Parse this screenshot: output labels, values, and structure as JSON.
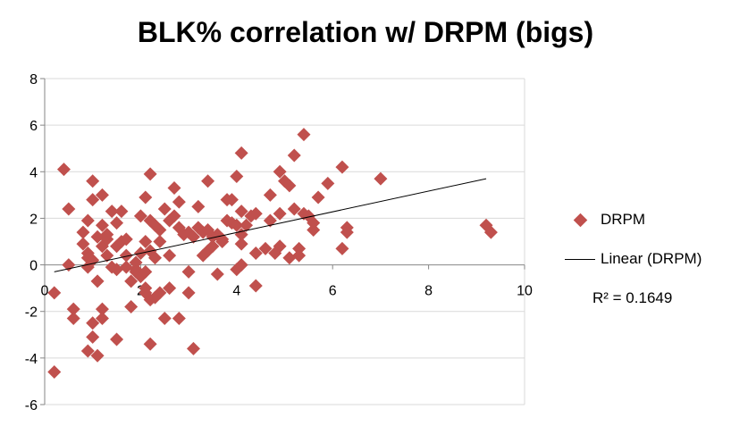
{
  "chart_data": {
    "type": "scatter",
    "title": "BLK% correlation w/ DRPM (bigs)",
    "xlabel": "",
    "ylabel": "",
    "xlim": [
      0,
      10
    ],
    "ylim": [
      -6,
      8
    ],
    "x_ticks": [
      "0",
      "2",
      "4",
      "6",
      "8",
      "10"
    ],
    "y_ticks": [
      "8",
      "6",
      "4",
      "2",
      "0",
      "-2",
      "-4",
      "-6"
    ],
    "grid": "horizontal",
    "legend_position": "right",
    "colors": {
      "marker": "#c0504d",
      "trendline": "#000000",
      "grid": "#d9d9d9",
      "axis": "#868686"
    },
    "series": [
      {
        "name": "DRPM",
        "points": [
          [
            0.2,
            -4.6
          ],
          [
            0.2,
            -1.2
          ],
          [
            0.4,
            4.1
          ],
          [
            0.5,
            2.4
          ],
          [
            0.5,
            0.0
          ],
          [
            0.6,
            -1.9
          ],
          [
            0.6,
            -2.3
          ],
          [
            0.8,
            1.4
          ],
          [
            0.8,
            0.9
          ],
          [
            0.9,
            0.5
          ],
          [
            0.9,
            1.9
          ],
          [
            0.9,
            -0.1
          ],
          [
            0.9,
            0.3
          ],
          [
            0.9,
            -3.7
          ],
          [
            1.0,
            0.2
          ],
          [
            1.0,
            -2.5
          ],
          [
            1.0,
            -3.1
          ],
          [
            1.0,
            2.8
          ],
          [
            1.0,
            3.6
          ],
          [
            1.1,
            -0.7
          ],
          [
            1.1,
            -3.9
          ],
          [
            1.1,
            1.2
          ],
          [
            1.2,
            -1.9
          ],
          [
            1.2,
            -2.3
          ],
          [
            1.2,
            0.8
          ],
          [
            1.2,
            1.7
          ],
          [
            1.2,
            3.0
          ],
          [
            1.3,
            0.4
          ],
          [
            1.3,
            1.1
          ],
          [
            1.3,
            1.3
          ],
          [
            1.4,
            -0.1
          ],
          [
            1.4,
            2.3
          ],
          [
            1.5,
            1.8
          ],
          [
            1.5,
            0.8
          ],
          [
            1.5,
            -0.2
          ],
          [
            1.5,
            -3.2
          ],
          [
            1.6,
            1.0
          ],
          [
            1.6,
            2.3
          ],
          [
            1.7,
            1.1
          ],
          [
            1.7,
            0.4
          ],
          [
            1.7,
            -0.1
          ],
          [
            1.8,
            -0.7
          ],
          [
            1.8,
            -1.8
          ],
          [
            1.9,
            -0.2
          ],
          [
            1.9,
            0.1
          ],
          [
            1.9,
            -0.3
          ],
          [
            2.0,
            0.5
          ],
          [
            2.0,
            2.1
          ],
          [
            2.0,
            -0.5
          ],
          [
            2.1,
            2.9
          ],
          [
            2.1,
            -1.0
          ],
          [
            2.1,
            -1.2
          ],
          [
            2.1,
            -0.3
          ],
          [
            2.1,
            1.0
          ],
          [
            2.2,
            0.6
          ],
          [
            2.2,
            1.9
          ],
          [
            2.2,
            3.9
          ],
          [
            2.2,
            -1.5
          ],
          [
            2.2,
            -3.4
          ],
          [
            2.3,
            1.7
          ],
          [
            2.3,
            -1.4
          ],
          [
            2.3,
            0.3
          ],
          [
            2.4,
            1.0
          ],
          [
            2.4,
            1.5
          ],
          [
            2.4,
            -1.2
          ],
          [
            2.5,
            2.4
          ],
          [
            2.5,
            -2.3
          ],
          [
            2.6,
            1.9
          ],
          [
            2.6,
            0.4
          ],
          [
            2.6,
            -1.0
          ],
          [
            2.7,
            2.1
          ],
          [
            2.7,
            3.3
          ],
          [
            2.8,
            -2.3
          ],
          [
            2.8,
            1.6
          ],
          [
            2.8,
            2.7
          ],
          [
            2.9,
            1.3
          ],
          [
            3.0,
            -1.2
          ],
          [
            3.0,
            1.4
          ],
          [
            3.0,
            -0.3
          ],
          [
            3.1,
            -3.6
          ],
          [
            3.1,
            1.2
          ],
          [
            3.2,
            2.5
          ],
          [
            3.2,
            1.6
          ],
          [
            3.3,
            1.4
          ],
          [
            3.3,
            0.4
          ],
          [
            3.4,
            3.6
          ],
          [
            3.4,
            1.5
          ],
          [
            3.4,
            0.6
          ],
          [
            3.5,
            0.8
          ],
          [
            3.5,
            1.2
          ],
          [
            3.6,
            -0.4
          ],
          [
            3.6,
            1.3
          ],
          [
            3.7,
            1.0
          ],
          [
            3.7,
            1.1
          ],
          [
            3.8,
            2.8
          ],
          [
            3.8,
            1.9
          ],
          [
            3.9,
            1.8
          ],
          [
            3.9,
            2.8
          ],
          [
            4.0,
            -0.2
          ],
          [
            4.0,
            1.7
          ],
          [
            4.0,
            3.8
          ],
          [
            4.1,
            0.9
          ],
          [
            4.1,
            4.8
          ],
          [
            4.1,
            0.0
          ],
          [
            4.1,
            2.3
          ],
          [
            4.1,
            1.3
          ],
          [
            4.2,
            1.7
          ],
          [
            4.3,
            2.1
          ],
          [
            4.4,
            -0.9
          ],
          [
            4.4,
            0.5
          ],
          [
            4.4,
            2.2
          ],
          [
            4.6,
            0.7
          ],
          [
            4.7,
            3.0
          ],
          [
            4.7,
            1.9
          ],
          [
            4.8,
            0.5
          ],
          [
            4.9,
            4.0
          ],
          [
            4.9,
            0.8
          ],
          [
            4.9,
            2.2
          ],
          [
            5.0,
            3.6
          ],
          [
            5.1,
            0.3
          ],
          [
            5.1,
            3.4
          ],
          [
            5.2,
            4.7
          ],
          [
            5.2,
            2.4
          ],
          [
            5.3,
            0.7
          ],
          [
            5.3,
            0.4
          ],
          [
            5.4,
            2.2
          ],
          [
            5.4,
            5.6
          ],
          [
            5.5,
            2.1
          ],
          [
            5.6,
            1.8
          ],
          [
            5.6,
            1.5
          ],
          [
            5.7,
            2.9
          ],
          [
            5.9,
            3.5
          ],
          [
            6.2,
            4.2
          ],
          [
            6.2,
            0.7
          ],
          [
            6.3,
            1.6
          ],
          [
            6.3,
            1.4
          ],
          [
            7.0,
            3.7
          ],
          [
            9.2,
            1.7
          ],
          [
            9.3,
            1.4
          ]
        ]
      }
    ],
    "trendline": {
      "name": "Linear (DRPM)",
      "x_start": 0.2,
      "y_start": -0.3,
      "x_end": 9.2,
      "y_end": 3.7,
      "r_squared_label": "R² = 0.1649"
    }
  }
}
